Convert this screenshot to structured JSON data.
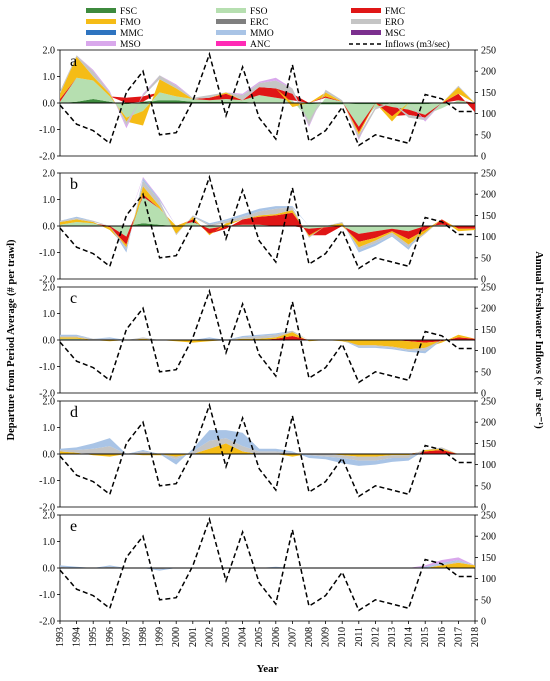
{
  "figure": {
    "colors": {
      "FSC": "#3d8a3d",
      "FSO": "#b6dfb0",
      "FMC": "#e01616",
      "FMO": "#f5bc16",
      "ERC": "#7f7f7f",
      "ERO": "#c5c5c5",
      "MMC": "#2e74c0",
      "MMO": "#a9c4e6",
      "MSC": "#7b2f8e",
      "MSO": "#d9a8ec",
      "ANC": "#ff2bb5"
    }
  },
  "chart_data": {
    "type": "area",
    "xlabel": "Year",
    "ylabel_left": "Departure from Period Average (# per trawl)",
    "ylabel_right": "Annual Freshwater Inflows (× m³ sec⁻¹)",
    "x": [
      1993,
      1994,
      1995,
      1996,
      1997,
      1998,
      1999,
      2000,
      2001,
      2002,
      2003,
      2004,
      2005,
      2006,
      2007,
      2008,
      2009,
      2010,
      2011,
      2012,
      2013,
      2014,
      2015,
      2016,
      2017,
      2018
    ],
    "x_tick_labels": [
      "1993",
      "1994",
      "1995",
      "1996",
      "1997",
      "1998",
      "1999",
      "2000",
      "2001",
      "2002",
      "2003",
      "2004",
      "2005",
      "2006",
      "2007",
      "2008",
      "2009",
      "2010",
      "2011",
      "2012",
      "2013",
      "2014",
      "2015",
      "2016",
      "2017",
      "2018"
    ],
    "ylim_left": [
      -2.0,
      2.0
    ],
    "yticks_left": [
      -2.0,
      -1.0,
      0.0,
      1.0,
      2.0
    ],
    "ytick_labels_left": [
      "-2.0",
      "-1.0",
      "0.0",
      "1.0",
      "2.0"
    ],
    "ylim_right": [
      0,
      250
    ],
    "yticks_right": [
      0,
      50,
      100,
      150,
      200,
      250
    ],
    "ytick_labels_right": [
      "0",
      "50",
      "100",
      "150",
      "200",
      "250"
    ],
    "legend": {
      "position": "top",
      "entries": [
        {
          "name": "FSC",
          "kind": "swatch"
        },
        {
          "name": "FSO",
          "kind": "swatch"
        },
        {
          "name": "FMC",
          "kind": "swatch"
        },
        {
          "name": "FMO",
          "kind": "swatch"
        },
        {
          "name": "ERC",
          "kind": "swatch"
        },
        {
          "name": "ERO",
          "kind": "swatch"
        },
        {
          "name": "MMC",
          "kind": "swatch"
        },
        {
          "name": "MMO",
          "kind": "swatch"
        },
        {
          "name": "MSC",
          "kind": "swatch"
        },
        {
          "name": "MSO",
          "kind": "swatch"
        },
        {
          "name": "ANC",
          "kind": "swatch"
        },
        {
          "name": "Inflows (m3/sec)",
          "kind": "dashed"
        }
      ]
    },
    "inflows": {
      "name": "Inflows (m3/sec)",
      "values": [
        120,
        75,
        60,
        30,
        150,
        200,
        50,
        55,
        130,
        240,
        95,
        210,
        90,
        40,
        215,
        35,
        60,
        115,
        25,
        50,
        40,
        30,
        145,
        135,
        105,
        105
      ]
    },
    "panels": [
      {
        "tag": "a",
        "series": [
          {
            "name": "FSC",
            "values": [
              0.0,
              0.05,
              0.15,
              0.05,
              -0.05,
              0.05,
              0.1,
              0.1,
              0.05,
              0.05,
              0.05,
              0.05,
              0.0,
              0.0,
              0.0,
              -0.05,
              -0.05,
              -0.05,
              -0.05,
              -0.05,
              -0.05,
              -0.05,
              -0.05,
              0.0,
              0.0,
              0.0
            ]
          },
          {
            "name": "FSO",
            "values": [
              0.05,
              0.9,
              0.7,
              0.2,
              -0.5,
              -0.3,
              0.3,
              0.15,
              0.1,
              0.05,
              0.1,
              0.05,
              0.3,
              0.2,
              0.1,
              -0.6,
              0.2,
              0.05,
              -0.85,
              -0.1,
              -0.1,
              -0.2,
              -0.4,
              -0.2,
              0.1,
              0.0
            ]
          },
          {
            "name": "FMC",
            "values": [
              0.1,
              0.0,
              0.0,
              0.0,
              0.2,
              0.2,
              0.0,
              0.0,
              0.0,
              0.1,
              0.2,
              0.0,
              0.3,
              0.35,
              0.25,
              0.0,
              0.05,
              0.0,
              -0.2,
              0.0,
              -0.35,
              -0.2,
              -0.1,
              0.0,
              0.25,
              -0.35
            ]
          },
          {
            "name": "FMO",
            "values": [
              0.2,
              0.8,
              0.15,
              0.1,
              -0.15,
              -0.55,
              0.5,
              0.3,
              0.0,
              0.0,
              0.05,
              0.0,
              0.0,
              0.0,
              -0.15,
              0.0,
              0.15,
              0.0,
              -0.1,
              0.0,
              -0.2,
              0.0,
              0.0,
              0.0,
              0.25,
              0.0
            ]
          },
          {
            "name": "ERO",
            "values": [
              0.1,
              0.05,
              0.2,
              0.05,
              -0.15,
              0.05,
              0.15,
              0.1,
              0.05,
              0.1,
              0.0,
              0.2,
              0.15,
              0.3,
              0.2,
              -0.2,
              0.1,
              0.05,
              -0.15,
              -0.1,
              0.0,
              -0.1,
              -0.1,
              0.0,
              0.05,
              0.0
            ]
          },
          {
            "name": "MSO",
            "values": [
              0.0,
              0.0,
              0.05,
              0.05,
              -0.1,
              0.05,
              0.0,
              0.05,
              0.0,
              0.0,
              0.0,
              0.05,
              0.05,
              0.1,
              0.0,
              -0.05,
              0.0,
              0.0,
              -0.05,
              0.0,
              0.0,
              0.0,
              -0.05,
              0.0,
              0.0,
              0.0
            ]
          }
        ]
      },
      {
        "tag": "b",
        "series": [
          {
            "name": "FSC",
            "values": [
              0,
              0,
              0,
              0,
              0,
              0.1,
              0.05,
              0,
              0,
              0,
              0,
              0,
              0,
              0,
              0,
              0,
              0,
              0,
              0,
              0,
              0,
              0,
              0,
              0,
              0,
              0
            ]
          },
          {
            "name": "FSO",
            "values": [
              0.05,
              0.15,
              0.1,
              0.0,
              -0.4,
              1.0,
              0.6,
              0.0,
              0.15,
              -0.1,
              0.0,
              0.05,
              0.05,
              0.0,
              0.0,
              -0.1,
              -0.05,
              0.0,
              -0.3,
              -0.2,
              -0.1,
              -0.2,
              0.0,
              0.05,
              0.0,
              0.0
            ]
          },
          {
            "name": "FMC",
            "values": [
              0,
              0,
              0,
              -0.05,
              -0.3,
              0.1,
              0.0,
              0,
              0.1,
              -0.2,
              -0.1,
              0.2,
              0.3,
              0.4,
              0.5,
              -0.25,
              -0.3,
              0,
              -0.3,
              -0.25,
              -0.1,
              -0.3,
              -0.15,
              0.2,
              -0.1,
              -0.1
            ]
          },
          {
            "name": "FMO",
            "values": [
              0.1,
              0.1,
              0.05,
              -0.1,
              -0.1,
              0.3,
              0.1,
              -0.3,
              0.1,
              -0.05,
              0.1,
              0.0,
              0.05,
              0.05,
              0.1,
              -0.05,
              0.0,
              0.1,
              -0.2,
              -0.1,
              -0.05,
              -0.2,
              -0.1,
              0.0,
              -0.1,
              -0.05
            ]
          },
          {
            "name": "ERO",
            "values": [
              0.05,
              0.05,
              0.05,
              0.0,
              -0.1,
              0.2,
              0.2,
              -0.05,
              0.05,
              0.05,
              0.1,
              0.1,
              0.15,
              0.2,
              0.1,
              -0.05,
              0.0,
              0.05,
              -0.1,
              -0.1,
              -0.1,
              -0.1,
              -0.05,
              0.0,
              0.0,
              0.0
            ]
          },
          {
            "name": "MMO",
            "values": [
              0.0,
              0.05,
              0.0,
              0.0,
              -0.1,
              0.1,
              0.05,
              0.0,
              0.0,
              0.05,
              0.05,
              0.1,
              0.1,
              0.1,
              0.05,
              0.0,
              0.0,
              0.0,
              -0.1,
              -0.1,
              -0.05,
              -0.1,
              0.0,
              0.0,
              0.0,
              0.0
            ]
          },
          {
            "name": "MSO",
            "values": [
              0,
              0,
              0,
              0,
              0,
              0.05,
              0.05,
              0,
              0,
              0,
              0,
              0,
              0,
              0,
              0,
              0,
              0,
              0,
              0,
              0,
              0,
              0,
              0,
              0,
              0,
              0
            ]
          }
        ]
      },
      {
        "tag": "c",
        "series": [
          {
            "name": "FSO",
            "values": [
              0.05,
              0.05,
              0.0,
              0.0,
              0.0,
              0.0,
              0.0,
              0.0,
              0.0,
              0.0,
              0.0,
              0.0,
              0.0,
              0.0,
              0.0,
              0.0,
              0.0,
              0.0,
              0.0,
              0.0,
              0.0,
              0.0,
              0.0,
              0.0,
              0.0,
              0.0
            ]
          },
          {
            "name": "FMC",
            "values": [
              0,
              0,
              0,
              0,
              0,
              0,
              0,
              0,
              0,
              0,
              0,
              0,
              0,
              0.05,
              0.15,
              0,
              0,
              0,
              0,
              0,
              0,
              -0.05,
              -0.1,
              -0.05,
              0.1,
              0.05
            ]
          },
          {
            "name": "FMO",
            "values": [
              0.05,
              0.05,
              0.0,
              -0.05,
              0.0,
              0.05,
              0.0,
              -0.05,
              -0.1,
              -0.05,
              0.0,
              0.05,
              0.05,
              0.05,
              0.15,
              -0.05,
              0.0,
              -0.05,
              -0.2,
              -0.2,
              -0.25,
              -0.3,
              -0.2,
              -0.05,
              0.1,
              0.0
            ]
          },
          {
            "name": "ERO",
            "values": [
              0.05,
              0.05,
              0.05,
              0.05,
              0.0,
              0.05,
              0.0,
              0.0,
              0.0,
              0.05,
              0.0,
              0.05,
              0.1,
              0.1,
              0.05,
              0.0,
              0.0,
              0.0,
              -0.05,
              -0.05,
              -0.05,
              -0.05,
              -0.1,
              0.0,
              0.0,
              0.0
            ]
          },
          {
            "name": "MMO",
            "values": [
              0.05,
              0.05,
              0.0,
              0.05,
              0.0,
              0.0,
              0.0,
              0.0,
              0.0,
              0.05,
              0.0,
              0.05,
              0.05,
              0.05,
              0.0,
              0.0,
              0.0,
              0.0,
              -0.05,
              -0.05,
              -0.05,
              -0.05,
              -0.1,
              0.0,
              0.0,
              0.0
            ]
          }
        ]
      },
      {
        "tag": "d",
        "series": [
          {
            "name": "FMC",
            "values": [
              0,
              0,
              0,
              0,
              0,
              0,
              0,
              0,
              0,
              0,
              0,
              0,
              0,
              0,
              0,
              0,
              0,
              0,
              0,
              0,
              0,
              0,
              0.1,
              0.15,
              0.0,
              0.0
            ]
          },
          {
            "name": "FMO",
            "values": [
              0.1,
              0.05,
              -0.05,
              -0.1,
              0.0,
              -0.05,
              -0.05,
              -0.1,
              0.0,
              0.2,
              0.4,
              0.1,
              0.0,
              0.0,
              -0.1,
              0.0,
              0.0,
              -0.05,
              -0.1,
              -0.1,
              -0.05,
              -0.05,
              0.05,
              0.05,
              0.0,
              0.0
            ]
          },
          {
            "name": "ERO",
            "values": [
              0.05,
              0.1,
              0.2,
              0.3,
              0.0,
              0.1,
              0.0,
              -0.1,
              0.1,
              0.3,
              0.2,
              0.2,
              0.1,
              0.1,
              0.05,
              -0.05,
              -0.1,
              -0.1,
              -0.15,
              -0.15,
              -0.1,
              -0.1,
              0.0,
              0.05,
              0.0,
              0.0
            ]
          },
          {
            "name": "MMO",
            "values": [
              0.05,
              0.1,
              0.2,
              0.3,
              0.0,
              0.05,
              0.0,
              -0.2,
              0.1,
              0.4,
              0.3,
              0.5,
              0.1,
              0.1,
              0.05,
              -0.1,
              -0.1,
              -0.2,
              -0.2,
              -0.15,
              -0.15,
              -0.1,
              0.0,
              0.0,
              0.0,
              0.0
            ]
          }
        ]
      },
      {
        "tag": "e",
        "series": [
          {
            "name": "FMO",
            "values": [
              0,
              0,
              0,
              0,
              0,
              0,
              0,
              0,
              0,
              0,
              0,
              0,
              0,
              0,
              0,
              0,
              0,
              0,
              0,
              0,
              0,
              0,
              0,
              0.1,
              0.2,
              0.1
            ]
          },
          {
            "name": "ERO",
            "values": [
              0.05,
              0.0,
              0.0,
              0.05,
              0.0,
              0.0,
              -0.05,
              0.0,
              0.0,
              0.0,
              0.0,
              0.0,
              0.0,
              0.0,
              0.0,
              0.0,
              0.0,
              0.0,
              0.0,
              0.0,
              0.0,
              0.0,
              0.0,
              0.05,
              0.05,
              0.0
            ]
          },
          {
            "name": "MMO",
            "values": [
              0.05,
              0.05,
              0.0,
              0.05,
              0.0,
              0.0,
              -0.05,
              0.0,
              0.0,
              0.0,
              0.0,
              0.0,
              0.0,
              0.05,
              0.0,
              0.0,
              0.0,
              0.0,
              0.0,
              0.0,
              0.0,
              0.0,
              0.05,
              0.05,
              0.05,
              0.0
            ]
          },
          {
            "name": "MSO",
            "values": [
              0.0,
              0.0,
              0.0,
              0.0,
              0.0,
              0.0,
              0.0,
              0.0,
              0.0,
              0.0,
              0.0,
              0.0,
              0.0,
              0.0,
              0.0,
              0.0,
              0.0,
              0.0,
              0.0,
              0.0,
              0.0,
              0.0,
              0.05,
              0.1,
              0.1,
              0.0
            ]
          }
        ]
      }
    ]
  }
}
